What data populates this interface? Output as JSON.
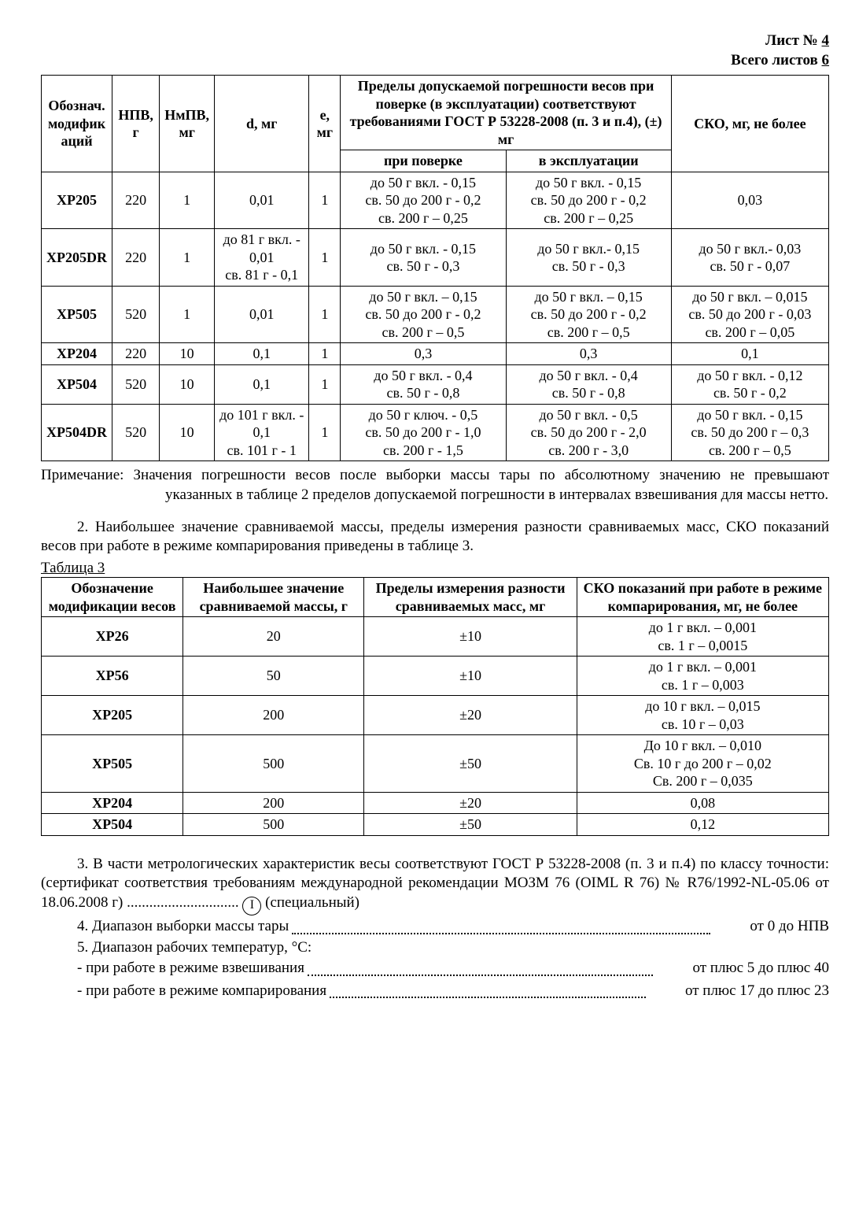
{
  "header": {
    "sheet_no_label": "Лист №",
    "sheet_no_value": "4",
    "total_sheets_label": "Всего листов",
    "total_sheets_value": "6"
  },
  "table1": {
    "headers": {
      "h1": "Обознач. модифик аций",
      "h2": "НПВ, г",
      "h3": "НмПВ, мг",
      "h4": "d, мг",
      "h5": "e, мг",
      "h6": "Пределы допускаемой погрешности весов при поверке (в эксплуатации) соответствуют требованиями ГОСТ Р 53228-2008 (п. 3 и п.4), (±) мг",
      "h6a": "при поверке",
      "h6b": "в эксплуатации",
      "h7": "СКО, мг, не более"
    },
    "rows": [
      {
        "model": "XP205",
        "npv": "220",
        "nmpv": "1",
        "d": "0,01",
        "e": "1",
        "pov": "до 50 г вкл. - 0,15\nсв. 50 до 200 г - 0,2\nсв. 200 г – 0,25",
        "exp": "до 50 г вкл. - 0,15\nсв. 50 до 200 г - 0,2\nсв. 200 г – 0,25",
        "sko": "0,03"
      },
      {
        "model": "XP205DR",
        "npv": "220",
        "nmpv": "1",
        "d": "до 81 г вкл. - 0,01\nсв. 81 г - 0,1",
        "e": "1",
        "pov": "до 50 г вкл. - 0,15\nсв. 50 г - 0,3",
        "exp": "до 50 г вкл.- 0,15\nсв. 50 г - 0,3",
        "sko": "до 50 г вкл.- 0,03\nсв. 50 г - 0,07"
      },
      {
        "model": "XP505",
        "npv": "520",
        "nmpv": "1",
        "d": "0,01",
        "e": "1",
        "pov": "до 50 г вкл. – 0,15\nсв. 50 до 200 г - 0,2\nсв. 200 г – 0,5",
        "exp": "до 50 г вкл. – 0,15\nсв. 50 до 200 г - 0,2\nсв. 200 г – 0,5",
        "sko": "до 50 г вкл. – 0,015\nсв. 50 до 200 г - 0,03\nсв. 200 г – 0,05"
      },
      {
        "model": "XP204",
        "npv": "220",
        "nmpv": "10",
        "d": "0,1",
        "e": "1",
        "pov": "0,3",
        "exp": "0,3",
        "sko": "0,1"
      },
      {
        "model": "XP504",
        "npv": "520",
        "nmpv": "10",
        "d": "0,1",
        "e": "1",
        "pov": "до 50 г вкл. - 0,4\nсв. 50 г - 0,8",
        "exp": "до 50 г вкл. - 0,4\nсв. 50 г - 0,8",
        "sko": "до 50 г вкл. - 0,12\nсв. 50 г - 0,2"
      },
      {
        "model": "XP504DR",
        "npv": "520",
        "nmpv": "10",
        "d": "до 101 г вкл. - 0,1\nсв. 101 г - 1",
        "e": "1",
        "pov": "до 50 г ключ. - 0,5\nсв. 50 до 200 г - 1,0\nсв. 200 г - 1,5",
        "exp": "до 50 г  вкл. - 0,5\nсв. 50 до 200 г - 2,0\nсв. 200 г - 3,0",
        "sko": "до 50 г вкл. - 0,15\nсв. 50 до 200 г – 0,3\nсв. 200 г – 0,5"
      }
    ]
  },
  "note1": "Примечание: Значения погрешности весов после выборки массы тары по абсолютному значению не превышают указанных в таблице 2 пределов допускаемой погрешности в интервалах взвешивания для массы нетто.",
  "para2": "2. Наибольшее значение сравниваемой массы, пределы измерения разности сравниваемых масс, СКО показаний весов при работе в режиме компарирования приведены в таблице 3.",
  "table3_caption": "Таблица 3",
  "table3": {
    "headers": {
      "h1": "Обозначение модификации весов",
      "h2": "Наибольшее значение сравниваемой массы, г",
      "h3": "Пределы измерения разности сравниваемых масс, мг",
      "h4": "СКО показаний при работе в режиме компарирования, мг, не более"
    },
    "rows": [
      {
        "model": "XP26",
        "max": "20",
        "lim": "±10",
        "sko": "до 1 г вкл. – 0,001\nсв. 1 г – 0,0015"
      },
      {
        "model": "XP56",
        "max": "50",
        "lim": "±10",
        "sko": "до 1 г вкл. – 0,001\nсв. 1 г – 0,003"
      },
      {
        "model": "XP205",
        "max": "200",
        "lim": "±20",
        "sko": "до 10 г вкл. – 0,015\nсв. 10 г – 0,03"
      },
      {
        "model": "XP505",
        "max": "500",
        "lim": "±50",
        "sko": "До 10 г вкл. – 0,010\nСв. 10 г до 200 г – 0,02\nСв. 200 г – 0,035"
      },
      {
        "model": "XP204",
        "max": "200",
        "lim": "±20",
        "sko": "0,08"
      },
      {
        "model": "XP504",
        "max": "500",
        "lim": "±50",
        "sko": "0,12"
      }
    ]
  },
  "para3a": "3. В части метрологических характеристик весы соответствуют ГОСТ Р 53228-2008 (п. 3 и п.4) по классу точности: (сертификат соответствия требованиям международной рекомендации МОЗМ 76 (OIML R 76) № R76/1992-NL-05.06 от 18.06.2008 г)",
  "para3a_r": "(специальный)",
  "para3b_l": "4. Диапазон выборки массы тары",
  "para3b_r": "от 0 до НПВ",
  "para3c": "5. Диапазон рабочих температур, °С:",
  "para3d_l": "- при работе в режиме взвешивания",
  "para3d_r": "от плюс 5 до плюс 40",
  "para3e_l": "- при работе в режиме компарирования",
  "para3e_r": "от плюс 17 до плюс 23",
  "circ_i": "I"
}
